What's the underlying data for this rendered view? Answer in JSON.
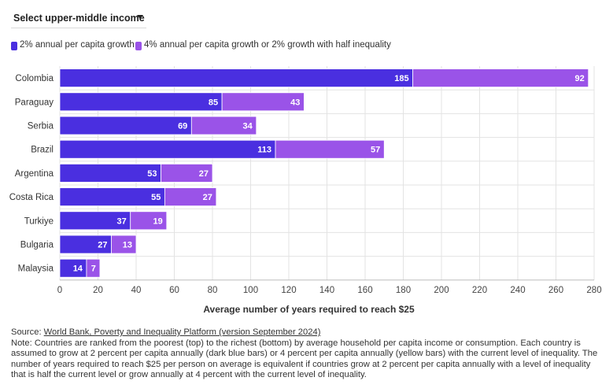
{
  "selector": {
    "label": "Select upper-middle income"
  },
  "legend": [
    {
      "label": "2% annual per capita growth",
      "color": "#4a2fe0"
    },
    {
      "label": "4% annual per capita growth or 2% growth with half inequality",
      "color": "#9a53e8"
    }
  ],
  "chart_data": {
    "type": "bar",
    "orientation": "horizontal",
    "stacked": true,
    "categories": [
      "Colombia",
      "Paraguay",
      "Serbia",
      "Brazil",
      "Argentina",
      "Costa Rica",
      "Turkiye",
      "Bulgaria",
      "Malaysia"
    ],
    "series": [
      {
        "name": "2% annual per capita growth",
        "color": "#4a2fe0",
        "values": [
          185,
          85,
          69,
          113,
          53,
          55,
          37,
          27,
          14
        ]
      },
      {
        "name": "4% annual per capita growth or 2% growth with half inequality",
        "color": "#9a53e8",
        "values": [
          92,
          43,
          34,
          57,
          27,
          27,
          19,
          13,
          7
        ]
      }
    ],
    "xlabel": "Average number of years required to reach $25",
    "xlim": [
      0,
      280
    ],
    "xticks": [
      0,
      20,
      40,
      60,
      80,
      100,
      120,
      140,
      160,
      180,
      200,
      220,
      240,
      260,
      280
    ],
    "grid": true
  },
  "footnote": {
    "source_prefix": "Source: ",
    "source_link": "World Bank, Poverty and Inequality Platform (version September 2024)",
    "note": "Note: Countries are ranked from the poorest (top) to the richest (bottom) by average household per capita income or consumption. Each country is assumed to grow at 2 percent per capita annually (dark blue bars) or 4 percent per capita annually (yellow bars) with the current level of inequality. The number of years required to reach $25 per person on average is equivalent if countries grow at 2 percent per capita annually with a level of inequality that is half the current level or grow annually at 4 percent with the current level of inequality."
  }
}
